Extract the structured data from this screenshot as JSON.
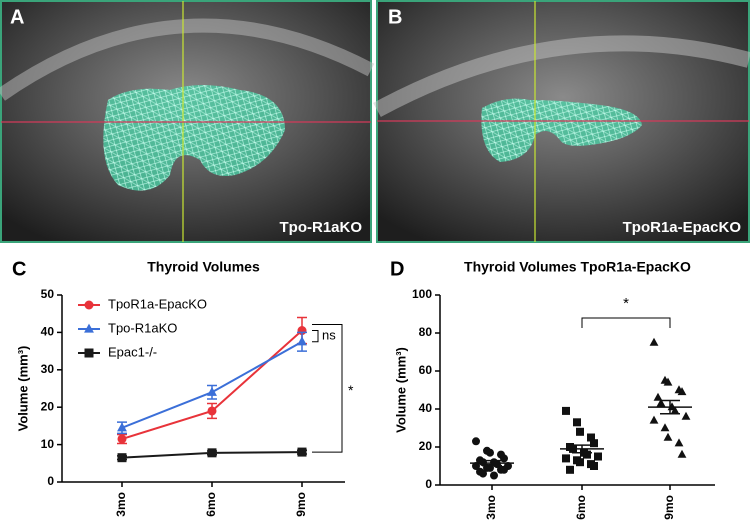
{
  "images": [
    {
      "letter": "A",
      "caption": "Tpo-R1aKO"
    },
    {
      "letter": "B",
      "caption": "TpoR1a-EpacKO"
    }
  ],
  "chart_data": [
    {
      "type": "line",
      "letter": "C",
      "title": "Thyroid Volumes",
      "y_label": "Volume (mm³)",
      "categories": [
        "3mo",
        "6mo",
        "9mo"
      ],
      "ylim": [
        0,
        50
      ],
      "yticks": [
        0,
        10,
        20,
        30,
        40,
        50
      ],
      "series": [
        {
          "name": "TpoR1a-EpacKO",
          "color": "#e8333a",
          "marker": "circle",
          "values": [
            11.5,
            19,
            40.5
          ],
          "errors": [
            1.2,
            2,
            3.5
          ]
        },
        {
          "name": "Tpo-R1aKO",
          "color": "#3b6fd8",
          "marker": "triangle",
          "values": [
            14.5,
            24,
            37.5
          ],
          "errors": [
            1.5,
            1.8,
            2.5
          ]
        },
        {
          "name": "Epac1-/-",
          "color": "#1a1a1a",
          "marker": "square",
          "values": [
            6.5,
            7.8,
            8
          ],
          "errors": [
            0.5,
            0.5,
            0.5
          ]
        }
      ],
      "annotations": [
        {
          "text": "ns"
        },
        {
          "text": "*"
        }
      ]
    },
    {
      "type": "dotplot",
      "letter": "D",
      "title": "Thyroid Volumes TpoR1a-EpacKO",
      "y_label": "Volume (mm³)",
      "categories": [
        "3mo",
        "6mo",
        "9mo"
      ],
      "ylim": [
        0,
        100
      ],
      "yticks": [
        0,
        20,
        40,
        60,
        80,
        100
      ],
      "color": "#111111",
      "groups": [
        {
          "marker": "circle",
          "values": [
            23,
            18,
            17,
            16,
            14,
            13,
            12,
            12,
            11,
            10,
            10,
            9,
            9,
            8,
            8,
            7,
            6,
            5
          ],
          "mean": 11.5,
          "sem": 1.3
        },
        {
          "marker": "square",
          "values": [
            39,
            33,
            28,
            25,
            22,
            20,
            19,
            17,
            16,
            15,
            14,
            13,
            12,
            11,
            10,
            8
          ],
          "mean": 19,
          "sem": 2
        },
        {
          "marker": "triangle",
          "values": [
            75,
            55,
            54,
            50,
            49,
            46,
            43,
            41,
            39,
            36,
            34,
            30,
            25,
            22,
            16
          ],
          "mean": 41,
          "sem": 3.5
        }
      ],
      "annotations": [
        {
          "text": "*"
        }
      ]
    }
  ]
}
